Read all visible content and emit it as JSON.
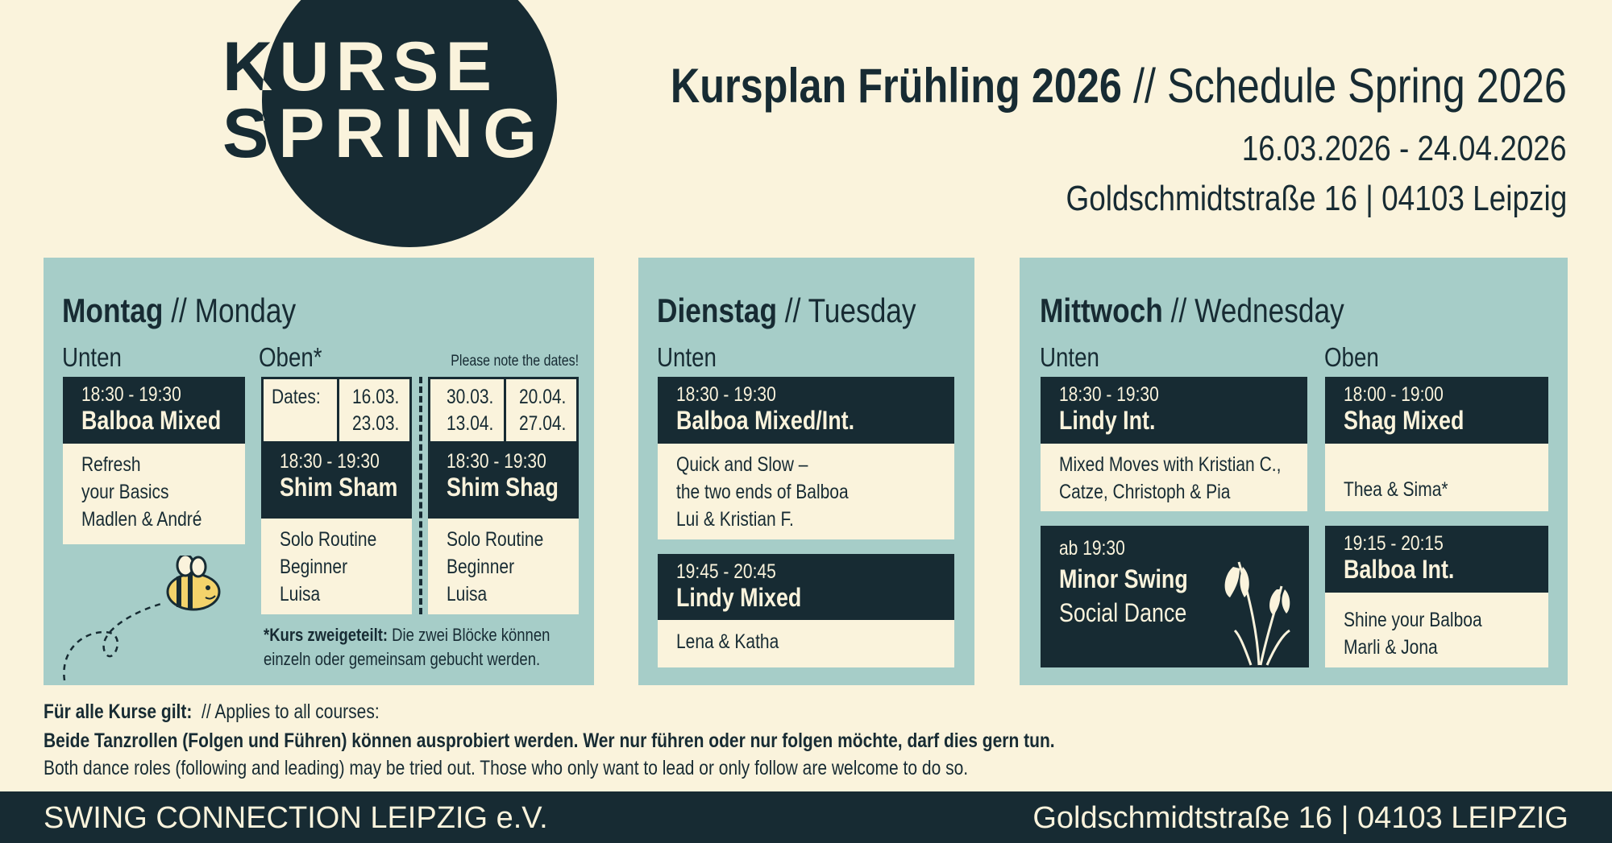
{
  "logo": {
    "line1": "KURSE",
    "line2": "SPRING"
  },
  "header": {
    "title_bold": "Kursplan Frühling 2026",
    "title_rest": "// Schedule Spring 2026",
    "dates": "16.03.2026 - 24.04.2026",
    "address": "Goldschmidtstraße 16 | 04103 Leipzig"
  },
  "monday": {
    "day": "Montag",
    "day_en": "// Monday",
    "room1": "Unten",
    "room2": "Oben*",
    "note": "Please note the dates!",
    "courses": [
      {
        "time": "18:30 - 19:30",
        "title": "Balboa Mixed",
        "lines": [
          "Refresh",
          "your Basics",
          "Madlen & André"
        ]
      },
      {
        "time": "18:30 - 19:30",
        "title": "Shim Sham",
        "lines": [
          "Solo Routine",
          "Beginner",
          "Luisa"
        ]
      },
      {
        "time": "18:30 - 19:30",
        "title": "Shim Shag",
        "lines": [
          "Solo Routine",
          "Beginner",
          "Luisa"
        ]
      }
    ],
    "dates_label": "Dates:",
    "dates": [
      [
        "16.03.",
        "23.03."
      ],
      [
        "30.03.",
        "13.04."
      ],
      [
        "20.04.",
        "27.04."
      ]
    ],
    "footnote_bold": "*Kurs zweigeteilt:",
    "footnote": [
      "Die zwei Blöcke können",
      "einzeln oder gemeinsam gebucht werden."
    ]
  },
  "tuesday": {
    "day": "Dienstag",
    "day_en": "// Tuesday",
    "room1": "Unten",
    "courses": [
      {
        "time": "18:30 - 19:30",
        "title": "Balboa Mixed/Int.",
        "lines": [
          "Quick and Slow –",
          "the two ends of Balboa",
          "Lui & Kristian F."
        ]
      },
      {
        "time": "19:45 - 20:45",
        "title": "Lindy Mixed",
        "lines": [
          "Lena & Katha"
        ]
      }
    ]
  },
  "wednesday": {
    "day": "Mittwoch",
    "day_en": "// Wednesday",
    "room1": "Unten",
    "room2": "Oben",
    "courses": [
      {
        "time": "18:30 - 19:30",
        "title": "Lindy Int.",
        "lines": [
          "Mixed Moves with Kristian C.,",
          "Catze, Christoph  & Pia"
        ]
      },
      {
        "time": "ab 19:30",
        "title": "Minor Swing",
        "lines": [
          "Social Dance"
        ]
      },
      {
        "time": "18:00 - 19:00",
        "title": "Shag Mixed",
        "lines": [
          "Thea & Sima*"
        ]
      },
      {
        "time": "19:15 - 20:15",
        "title": "Balboa Int.",
        "lines": [
          "Shine your Balboa",
          "Marli & Jona"
        ]
      }
    ]
  },
  "notes": {
    "intro_bold": "Für alle Kurse gilt:",
    "intro": "// Applies to all courses:",
    "line_de": "Beide Tanzrollen (Folgen und Führen) können ausprobiert werden. Wer nur führen oder nur folgen möchte, darf dies gern tun.",
    "line_en": "Both dance roles (following and leading) may be tried out. Those who only want to lead or only follow are welcome to do so."
  },
  "footer": {
    "left": "SWING CONNECTION LEIPZIG e.V.",
    "right": "Goldschmidtstraße 16  |  04103 LEIPZIG"
  }
}
